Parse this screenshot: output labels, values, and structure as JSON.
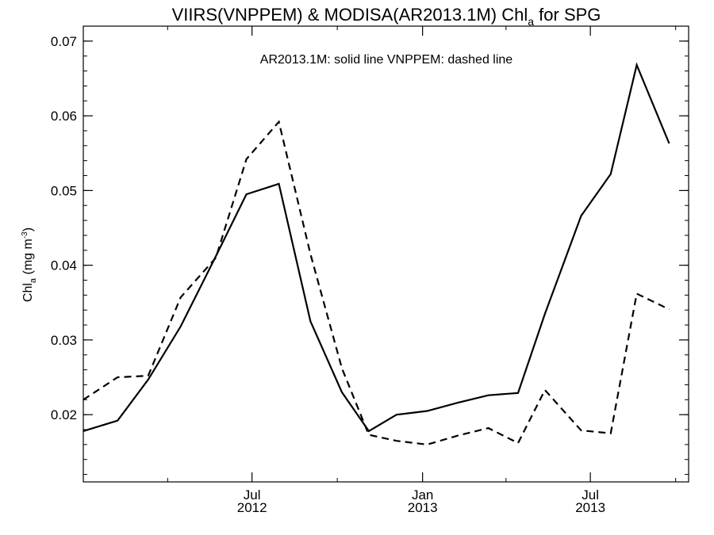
{
  "chart_data": {
    "type": "line",
    "title": {
      "parts": [
        {
          "text": "VIIRS(VNPPEM) & MODISA(AR2013.1M)  Chl",
          "sub": false
        },
        {
          "text": "a",
          "sub": true
        },
        {
          "text": " for SPG",
          "sub": false
        }
      ]
    },
    "ylabel": {
      "parts": [
        {
          "text": "Chl",
          "style": "normal"
        },
        {
          "text": "a",
          "style": "sub"
        },
        {
          "text": " (mg m",
          "style": "normal"
        },
        {
          "text": "-3",
          "style": "sup"
        },
        {
          "text": ")",
          "style": "normal"
        }
      ]
    },
    "annotation": "AR2013.1M: solid line   VNPPEM: dashed line",
    "x_range": [
      "2012-01-01",
      "2013-10-15"
    ],
    "ylim": [
      0.011,
      0.072
    ],
    "y_ticks": [
      {
        "value": 0.02,
        "label": "0.02"
      },
      {
        "value": 0.03,
        "label": "0.03"
      },
      {
        "value": 0.04,
        "label": "0.04"
      },
      {
        "value": 0.05,
        "label": "0.05"
      },
      {
        "value": 0.06,
        "label": "0.06"
      },
      {
        "value": 0.07,
        "label": "0.07"
      }
    ],
    "y_minor_step": 0.002,
    "x_major_ticks": [
      {
        "date": "2012-07-01",
        "label": "Jul",
        "year": "2012"
      },
      {
        "date": "2013-01-01",
        "label": "Jan",
        "year": "2013"
      },
      {
        "date": "2013-07-01",
        "label": "Jul",
        "year": "2013"
      }
    ],
    "x_minor_ticks": [
      "2012-04-01",
      "2012-10-01",
      "2013-04-01",
      "2013-10-01"
    ],
    "series": [
      {
        "style": "solid",
        "x": [
          "2012-01-01",
          "2012-02-07",
          "2012-03-11",
          "2012-04-15",
          "2012-05-23",
          "2012-06-25",
          "2012-07-30",
          "2012-09-02",
          "2012-10-06",
          "2012-11-04",
          "2012-12-04",
          "2013-01-06",
          "2013-02-08",
          "2013-03-13",
          "2013-04-14",
          "2013-05-13",
          "2013-06-21",
          "2013-07-23",
          "2013-08-20",
          "2013-09-24"
        ],
        "values": [
          0.0178,
          0.0192,
          0.0247,
          0.0318,
          0.0412,
          0.0495,
          0.0509,
          0.0325,
          0.023,
          0.0178,
          0.02,
          0.0205,
          0.0216,
          0.0226,
          0.0229,
          0.0335,
          0.0466,
          0.0522,
          0.0668,
          0.0563
        ]
      },
      {
        "style": "dashed",
        "x": [
          "2012-01-01",
          "2012-02-07",
          "2012-03-11",
          "2012-04-15",
          "2012-05-23",
          "2012-06-25",
          "2012-07-30",
          "2012-09-02",
          "2012-10-06",
          "2012-11-04",
          "2012-12-04",
          "2013-01-06",
          "2013-02-08",
          "2013-03-13",
          "2013-04-14",
          "2013-05-13",
          "2013-06-21",
          "2013-07-23",
          "2013-08-20",
          "2013-09-24"
        ],
        "values": [
          0.022,
          0.025,
          0.0252,
          0.0357,
          0.041,
          0.0542,
          0.0592,
          0.0415,
          0.0262,
          0.0173,
          0.0165,
          0.016,
          0.0172,
          0.0182,
          0.0162,
          0.0233,
          0.0179,
          0.0175,
          0.0362,
          0.0341
        ]
      }
    ],
    "grid": false,
    "colors": {
      "line": "#000000",
      "background": "#ffffff"
    }
  }
}
